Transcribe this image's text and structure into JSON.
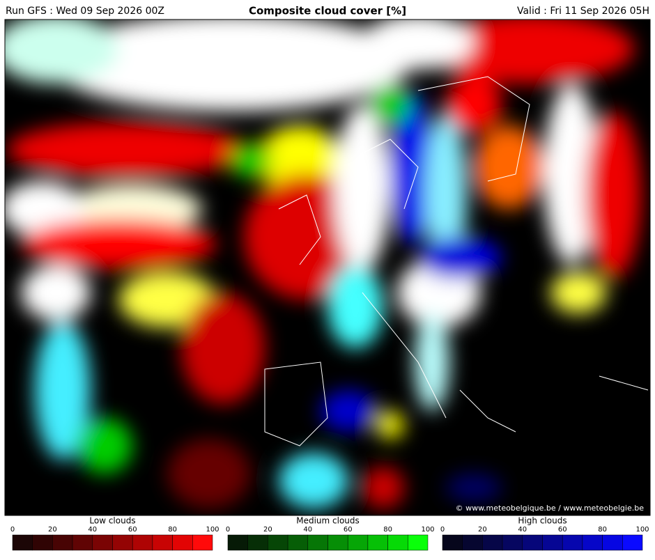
{
  "header": {
    "run": "Run GFS : Wed 09 Sep 2026 00Z",
    "title": "Composite cloud cover [%]",
    "valid": "Valid : Fri 11 Sep 2026 05H"
  },
  "copyright": "© www.meteobelgique.be / www.meteobelgie.be",
  "legends": [
    {
      "title": "Low clouds",
      "ticks": [
        0,
        20,
        40,
        60,
        80,
        100
      ],
      "colors": [
        "#1c0606",
        "#300404",
        "#480404",
        "#600404",
        "#7a0404",
        "#940404",
        "#ae0404",
        "#c80404",
        "#e20404",
        "#ff0a0a"
      ]
    },
    {
      "title": "Medium clouds",
      "ticks": [
        0,
        20,
        40,
        60,
        80,
        100
      ],
      "colors": [
        "#061a06",
        "#062e06",
        "#064606",
        "#065e06",
        "#067606",
        "#068e06",
        "#06a606",
        "#06c006",
        "#06da06",
        "#0aff0a"
      ]
    },
    {
      "title": "High clouds",
      "ticks": [
        0,
        20,
        40,
        60,
        80,
        100
      ],
      "colors": [
        "#06061c",
        "#060630",
        "#060648",
        "#060660",
        "#06067a",
        "#060694",
        "#0606ae",
        "#0606c8",
        "#0606e2",
        "#0a0aff"
      ]
    }
  ]
}
